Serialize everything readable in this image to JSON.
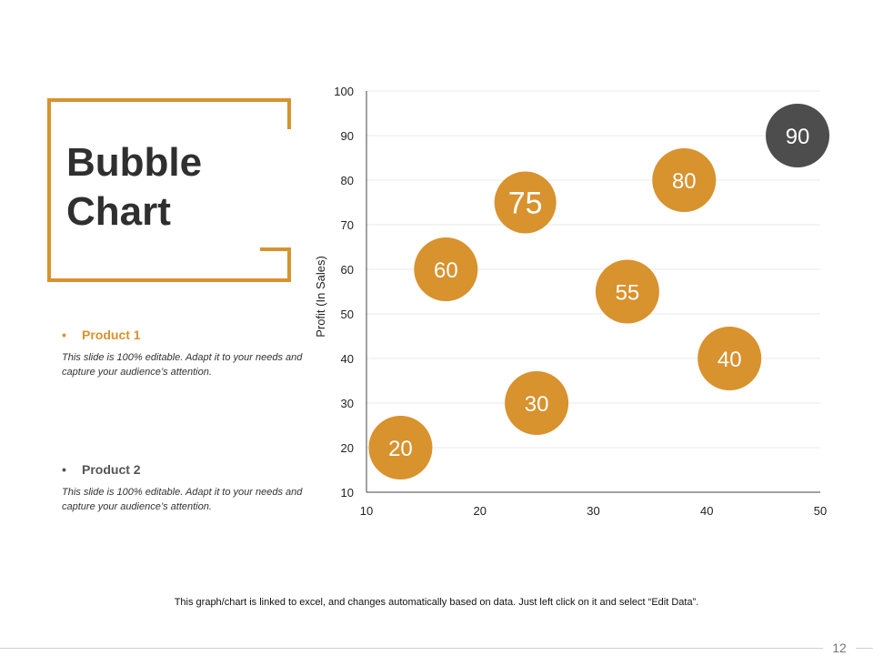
{
  "slide": {
    "title_line1": "Bubble",
    "title_line2": "Chart",
    "footnote": "This graph/chart is linked to excel, and changes automatically based on data. Just left click on it and select “Edit Data”.",
    "page_number": "12"
  },
  "products": [
    {
      "bullet": "•",
      "name": "Product 1",
      "description": "This slide is 100% editable. Adapt it to your needs and capture your audience’s attention."
    },
    {
      "bullet": "•",
      "name": "Product 2",
      "description": "This slide is 100% editable. Adapt it to your needs and capture your audience’s attention."
    }
  ],
  "colors": {
    "accent": "#d8922e",
    "dark_bubble": "#4d4d4d",
    "grid": "#e8e8e8",
    "axis": "#444444"
  },
  "chart_data": {
    "type": "scatter",
    "subtype": "bubble",
    "title": "",
    "xlabel": "",
    "ylabel": "Profit  (In Sales)",
    "xlim": [
      10,
      50
    ],
    "ylim": [
      10,
      100
    ],
    "x_ticks": [
      10,
      20,
      30,
      40,
      50
    ],
    "y_ticks": [
      10,
      20,
      30,
      40,
      50,
      60,
      70,
      80,
      90,
      100
    ],
    "grid": "horizontal",
    "series": [
      {
        "name": "Product 1",
        "color": "#d8922e",
        "points": [
          {
            "x": 13,
            "y": 20,
            "label": "20"
          },
          {
            "x": 25,
            "y": 30,
            "label": "30"
          },
          {
            "x": 42,
            "y": 40,
            "label": "40"
          },
          {
            "x": 33,
            "y": 55,
            "label": "55"
          },
          {
            "x": 17,
            "y": 60,
            "label": "60"
          },
          {
            "x": 24,
            "y": 75,
            "label": "75"
          },
          {
            "x": 38,
            "y": 80,
            "label": "80"
          }
        ]
      },
      {
        "name": "Product 2",
        "color": "#4d4d4d",
        "points": [
          {
            "x": 48,
            "y": 90,
            "label": "90"
          }
        ]
      }
    ]
  }
}
